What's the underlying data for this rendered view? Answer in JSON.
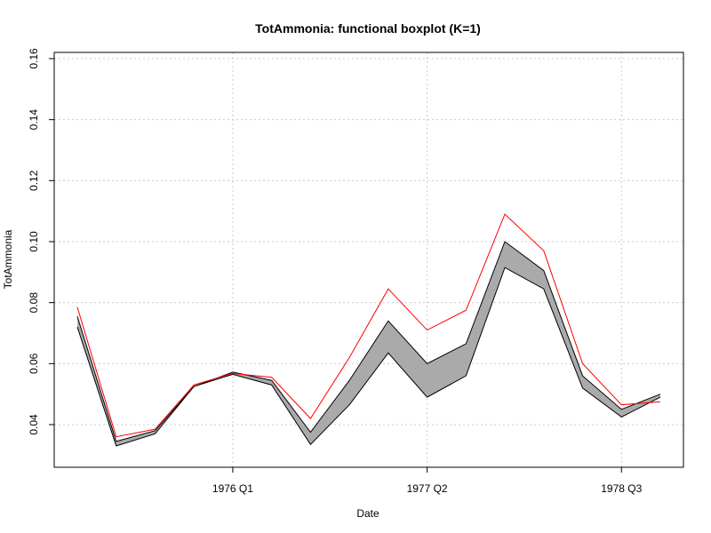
{
  "chart_data": {
    "type": "line",
    "title": "TotAmmonia: functional boxplot (K=1)",
    "xlabel": "Date",
    "ylabel": "TotAmmonia",
    "ylim": [
      0.03,
      0.16
    ],
    "yticks": [
      0.04,
      0.06,
      0.08,
      0.1,
      0.12,
      0.14,
      0.16
    ],
    "ytick_labels": [
      "0.04",
      "0.06",
      "0.08",
      "0.10",
      "0.12",
      "0.14",
      "0.16"
    ],
    "xticks": [
      {
        "at": 4,
        "label": "1976 Q1"
      },
      {
        "at": 9,
        "label": "1977 Q2"
      },
      {
        "at": 14,
        "label": "1978 Q3"
      }
    ],
    "x": [
      0,
      1,
      2,
      3,
      4,
      5,
      6,
      7,
      8,
      9,
      10,
      11,
      12,
      13,
      14,
      15
    ],
    "grid": true,
    "band": {
      "upper": [
        0.0755,
        0.0345,
        0.038,
        0.0525,
        0.0572,
        0.0545,
        0.0375,
        0.0545,
        0.074,
        0.06,
        0.0665,
        0.1,
        0.0905,
        0.056,
        0.045,
        0.05
      ],
      "lower": [
        0.072,
        0.033,
        0.037,
        0.0525,
        0.0565,
        0.053,
        0.0335,
        0.0465,
        0.0635,
        0.049,
        0.056,
        0.0915,
        0.0845,
        0.052,
        0.0425,
        0.049
      ],
      "fill": "#aaaaaa",
      "edge": "#000000"
    },
    "series": [
      {
        "values": [
          0.0785,
          0.036,
          0.0385,
          0.053,
          0.0568,
          0.0555,
          0.042,
          0.062,
          0.0845,
          0.071,
          0.0775,
          0.109,
          0.097,
          0.06,
          0.0465,
          0.0475
        ],
        "color": "#ff0000"
      }
    ]
  }
}
